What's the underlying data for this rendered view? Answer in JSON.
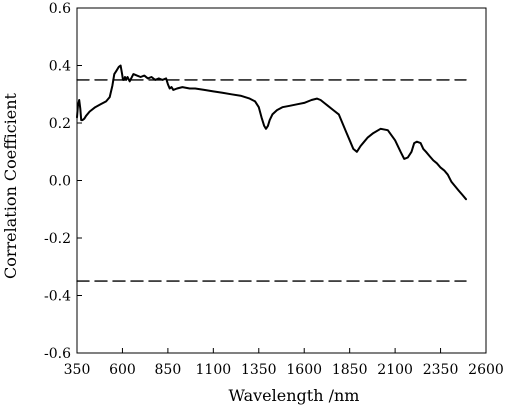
{
  "chart_data": {
    "type": "line",
    "title": "",
    "xlabel": "Wavelength /nm",
    "ylabel": "Correlation Coefficient",
    "xlim": [
      350,
      2600
    ],
    "ylim": [
      -0.6,
      0.6
    ],
    "x_ticks": [
      350,
      600,
      850,
      1100,
      1350,
      1600,
      1850,
      2100,
      2350,
      2600
    ],
    "y_ticks": [
      -0.6,
      -0.4,
      -0.2,
      0.0,
      0.2,
      0.4,
      0.6
    ],
    "x_tick_labels": [
      "350",
      "600",
      "850",
      "1100",
      "1350",
      "1600",
      "1850",
      "2100",
      "2350",
      "2600"
    ],
    "y_tick_labels": [
      "-0.6",
      "-0.4",
      "-0.2",
      "0.0",
      "0.2",
      "0.4",
      "0.6"
    ],
    "grid": false,
    "legend": "none",
    "series": [
      {
        "color": "#000000",
        "style": "solid",
        "x": [
          350,
          355,
          362,
          368,
          373,
          380,
          390,
          400,
          420,
          450,
          480,
          510,
          530,
          545,
          555,
          565,
          580,
          590,
          598,
          603,
          608,
          614,
          620,
          628,
          640,
          660,
          680,
          700,
          720,
          740,
          760,
          780,
          800,
          820,
          840,
          850,
          860,
          870,
          880,
          900,
          930,
          970,
          1000,
          1050,
          1100,
          1150,
          1200,
          1250,
          1300,
          1330,
          1350,
          1365,
          1380,
          1390,
          1400,
          1410,
          1425,
          1450,
          1480,
          1520,
          1560,
          1600,
          1640,
          1670,
          1690,
          1710,
          1730,
          1760,
          1790,
          1810,
          1830,
          1850,
          1870,
          1890,
          1910,
          1930,
          1950,
          1980,
          2020,
          2060,
          2100,
          2130,
          2150,
          2170,
          2190,
          2205,
          2220,
          2240,
          2255,
          2270,
          2290,
          2310,
          2330,
          2350,
          2370,
          2390,
          2410,
          2430,
          2450,
          2470,
          2490
        ],
        "y": [
          0.22,
          0.26,
          0.28,
          0.25,
          0.21,
          0.21,
          0.215,
          0.225,
          0.24,
          0.255,
          0.265,
          0.275,
          0.29,
          0.33,
          0.37,
          0.38,
          0.395,
          0.4,
          0.37,
          0.35,
          0.35,
          0.36,
          0.35,
          0.36,
          0.345,
          0.37,
          0.365,
          0.36,
          0.365,
          0.355,
          0.36,
          0.35,
          0.355,
          0.35,
          0.355,
          0.335,
          0.32,
          0.325,
          0.315,
          0.32,
          0.325,
          0.32,
          0.32,
          0.315,
          0.31,
          0.305,
          0.3,
          0.295,
          0.285,
          0.275,
          0.255,
          0.22,
          0.19,
          0.18,
          0.19,
          0.21,
          0.23,
          0.245,
          0.255,
          0.26,
          0.265,
          0.27,
          0.28,
          0.285,
          0.28,
          0.27,
          0.26,
          0.245,
          0.23,
          0.2,
          0.17,
          0.14,
          0.11,
          0.1,
          0.12,
          0.135,
          0.15,
          0.165,
          0.18,
          0.175,
          0.14,
          0.1,
          0.075,
          0.08,
          0.1,
          0.13,
          0.135,
          0.13,
          0.11,
          0.1,
          0.085,
          0.07,
          0.06,
          0.045,
          0.035,
          0.02,
          -0.005,
          -0.02,
          -0.035,
          -0.05,
          -0.065
        ]
      },
      {
        "color": "#000000",
        "style": "dashed",
        "x": [
          350,
          2490
        ],
        "y": [
          0.35,
          0.35
        ]
      },
      {
        "color": "#000000",
        "style": "dashed",
        "x": [
          350,
          2490
        ],
        "y": [
          -0.35,
          -0.35
        ]
      }
    ]
  }
}
